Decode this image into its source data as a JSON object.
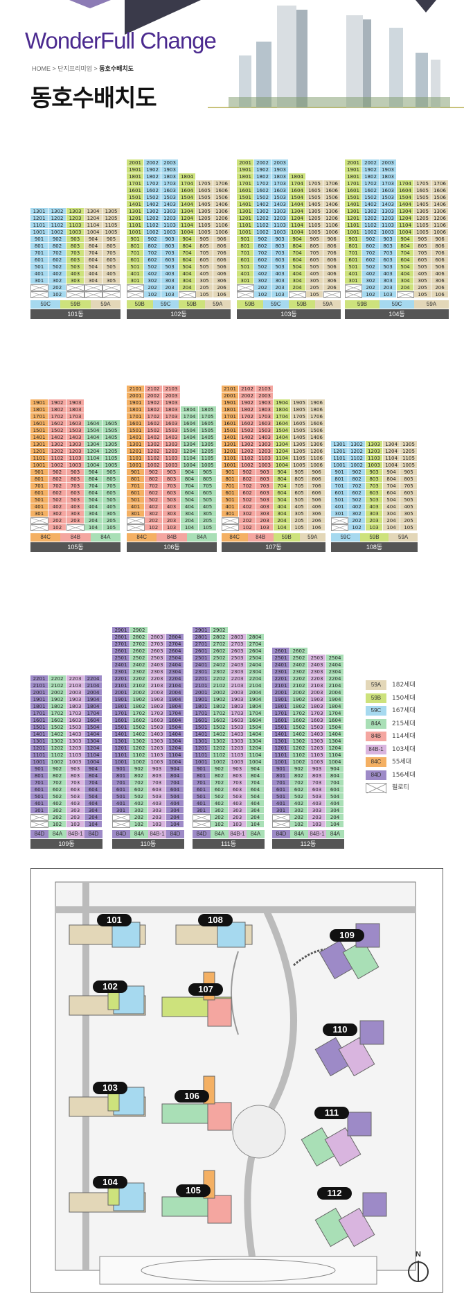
{
  "header": {
    "brand": "WonderFull Change",
    "breadcrumb": {
      "home": "HOME",
      "sep1": ">",
      "section": "단지프리미엄",
      "sep2": ">",
      "current": "동호수배치도"
    },
    "title": "동호수배치도"
  },
  "colors": {
    "59A": "#e3d7b8",
    "59B": "#cde27c",
    "59C": "#a6d9ef",
    "84A": "#a9dfb6",
    "84B": "#f4a6a0",
    "84B-1": "#d9b5df",
    "84C": "#f4b063",
    "84D": "#9d8ac7",
    "pilotis": "#ffffff",
    "name_bar": "#555555",
    "brand": "#4b2a8f"
  },
  "buildings": [
    {
      "id": "101",
      "name": "101동",
      "top": 13,
      "units": [
        {
          "type": "59C",
          "floors": [
            3,
            13
          ]
        },
        {
          "type": "59C",
          "floors": [
            1,
            13
          ]
        },
        {
          "type": "59B",
          "floors": [
            3,
            13
          ]
        },
        {
          "type": "59A",
          "floors": [
            3,
            13
          ]
        },
        {
          "type": "59A",
          "floors": [
            3,
            13
          ]
        }
      ],
      "typebar": [
        "59C",
        "59B",
        "59A"
      ]
    },
    {
      "id": "102",
      "name": "102동",
      "top": 20,
      "units": [
        {
          "type": "59B",
          "floors": [
            3,
            20
          ]
        },
        {
          "type": "59C",
          "floors": [
            1,
            20
          ]
        },
        {
          "type": "59C",
          "floors": [
            1,
            20
          ]
        },
        {
          "type": "59B",
          "floors": [
            2,
            18
          ]
        },
        {
          "type": "59A",
          "floors": [
            1,
            17
          ]
        },
        {
          "type": "59A",
          "floors": [
            1,
            17
          ]
        }
      ],
      "typebar": [
        "59B",
        "59C",
        "59B",
        "59A"
      ]
    },
    {
      "id": "103",
      "name": "103동",
      "top": 20,
      "units": [
        {
          "type": "59B",
          "floors": [
            3,
            20
          ]
        },
        {
          "type": "59C",
          "floors": [
            1,
            20
          ]
        },
        {
          "type": "59C",
          "floors": [
            1,
            20
          ]
        },
        {
          "type": "59B",
          "floors": [
            2,
            18
          ]
        },
        {
          "type": "59A",
          "floors": [
            1,
            17
          ]
        },
        {
          "type": "59A",
          "floors": [
            2,
            17
          ]
        }
      ],
      "typebar": [
        "59B",
        "59C",
        "59B",
        "59A"
      ]
    },
    {
      "id": "104",
      "name": "104동",
      "top": 20,
      "units": [
        {
          "type": "59B",
          "floors": [
            3,
            20
          ]
        },
        {
          "type": "59C",
          "floors": [
            1,
            20
          ]
        },
        {
          "type": "59C",
          "floors": [
            1,
            20
          ]
        },
        {
          "type": "59B",
          "floors": [
            2,
            17
          ]
        },
        {
          "type": "59A",
          "floors": [
            1,
            17
          ]
        },
        {
          "type": "59A",
          "floors": [
            1,
            17
          ]
        }
      ],
      "typebar": [
        "59B",
        "59C",
        "59A"
      ]
    },
    {
      "id": "105",
      "name": "105동",
      "top": 19,
      "units": [
        {
          "type": "84C",
          "floors": [
            3,
            19
          ]
        },
        {
          "type": "84B",
          "floors": [
            1,
            19
          ]
        },
        {
          "type": "84B",
          "floors": [
            2,
            19
          ]
        },
        {
          "type": "84A",
          "floors": [
            1,
            16
          ]
        },
        {
          "type": "84A",
          "floors": [
            1,
            16
          ]
        }
      ],
      "typebar": [
        "84C",
        "84B",
        "84A"
      ]
    },
    {
      "id": "106",
      "name": "106동",
      "top": 21,
      "units": [
        {
          "type": "84C",
          "floors": [
            3,
            21
          ]
        },
        {
          "type": "84B",
          "floors": [
            1,
            21
          ]
        },
        {
          "type": "84B",
          "floors": [
            1,
            21
          ]
        },
        {
          "type": "84A",
          "floors": [
            1,
            18
          ]
        },
        {
          "type": "84A",
          "floors": [
            1,
            18
          ]
        }
      ],
      "typebar": [
        "84C",
        "84B",
        "84A"
      ]
    },
    {
      "id": "107",
      "name": "107동",
      "top": 21,
      "units": [
        {
          "type": "84C",
          "floors": [
            3,
            21
          ]
        },
        {
          "type": "84B",
          "floors": [
            1,
            21
          ]
        },
        {
          "type": "84B",
          "floors": [
            1,
            21
          ]
        },
        {
          "type": "59B",
          "floors": [
            1,
            19
          ]
        },
        {
          "type": "59A",
          "floors": [
            1,
            19
          ]
        },
        {
          "type": "59A",
          "floors": [
            1,
            19
          ]
        }
      ],
      "typebar": [
        "84C",
        "84B",
        "59B",
        "59A"
      ]
    },
    {
      "id": "108",
      "name": "108동",
      "top": 13,
      "units": [
        {
          "type": "59C",
          "floors": [
            3,
            13
          ]
        },
        {
          "type": "59C",
          "floors": [
            1,
            13
          ]
        },
        {
          "type": "59B",
          "floors": [
            1,
            13
          ]
        },
        {
          "type": "59A",
          "floors": [
            1,
            13
          ]
        },
        {
          "type": "59A",
          "floors": [
            1,
            13
          ]
        }
      ],
      "typebar": [
        "59C",
        "59B",
        "59A"
      ]
    },
    {
      "id": "109",
      "name": "109동",
      "top": 22,
      "units": [
        {
          "type": "84D",
          "floors": [
            3,
            22
          ]
        },
        {
          "type": "84A",
          "floors": [
            1,
            22
          ]
        },
        {
          "type": "84B-1",
          "floors": [
            1,
            22
          ]
        },
        {
          "type": "84D",
          "floors": [
            1,
            22
          ]
        }
      ],
      "typebar": [
        "84D",
        "84A",
        "84B-1",
        "84D"
      ]
    },
    {
      "id": "110",
      "name": "110동",
      "top": 29,
      "units": [
        {
          "type": "84D",
          "floors": [
            3,
            29
          ]
        },
        {
          "type": "84A",
          "floors": [
            1,
            29
          ]
        },
        {
          "type": "84B-1",
          "floors": [
            1,
            28
          ]
        },
        {
          "type": "84D",
          "floors": [
            1,
            28
          ]
        }
      ],
      "typebar": [
        "84D",
        "84A",
        "84B-1",
        "84D"
      ]
    },
    {
      "id": "111",
      "name": "111동",
      "top": 29,
      "units": [
        {
          "type": "84D",
          "floors": [
            3,
            29
          ]
        },
        {
          "type": "84A",
          "floors": [
            1,
            29
          ]
        },
        {
          "type": "84B-1",
          "floors": [
            1,
            28
          ]
        },
        {
          "type": "84A",
          "floors": [
            1,
            28
          ]
        }
      ],
      "typebar": [
        "84D",
        "84A",
        "84B-1",
        "84A"
      ]
    },
    {
      "id": "112",
      "name": "112동",
      "top": 26,
      "units": [
        {
          "type": "84D",
          "floors": [
            3,
            26
          ]
        },
        {
          "type": "84A",
          "floors": [
            1,
            26
          ]
        },
        {
          "type": "84B-1",
          "floors": [
            1,
            25
          ]
        },
        {
          "type": "84A",
          "floors": [
            1,
            25
          ]
        }
      ],
      "typebar": [
        "84D",
        "84A",
        "84B-1",
        "84A"
      ]
    }
  ],
  "legend": [
    {
      "type": "59A",
      "count": "182세대"
    },
    {
      "type": "59B",
      "count": "150세대"
    },
    {
      "type": "59C",
      "count": "167세대"
    },
    {
      "type": "84A",
      "count": "215세대"
    },
    {
      "type": "84B",
      "count": "114세대"
    },
    {
      "type": "84B-1",
      "count": "103세대"
    },
    {
      "type": "84C",
      "count": "55세대"
    },
    {
      "type": "84D",
      "count": "156세대"
    },
    {
      "type": "pilotis",
      "label": "필로티"
    }
  ],
  "siteplan": {
    "labels": [
      "101",
      "102",
      "103",
      "104",
      "105",
      "106",
      "107",
      "108",
      "109",
      "110",
      "111",
      "112"
    ],
    "north": "N"
  }
}
